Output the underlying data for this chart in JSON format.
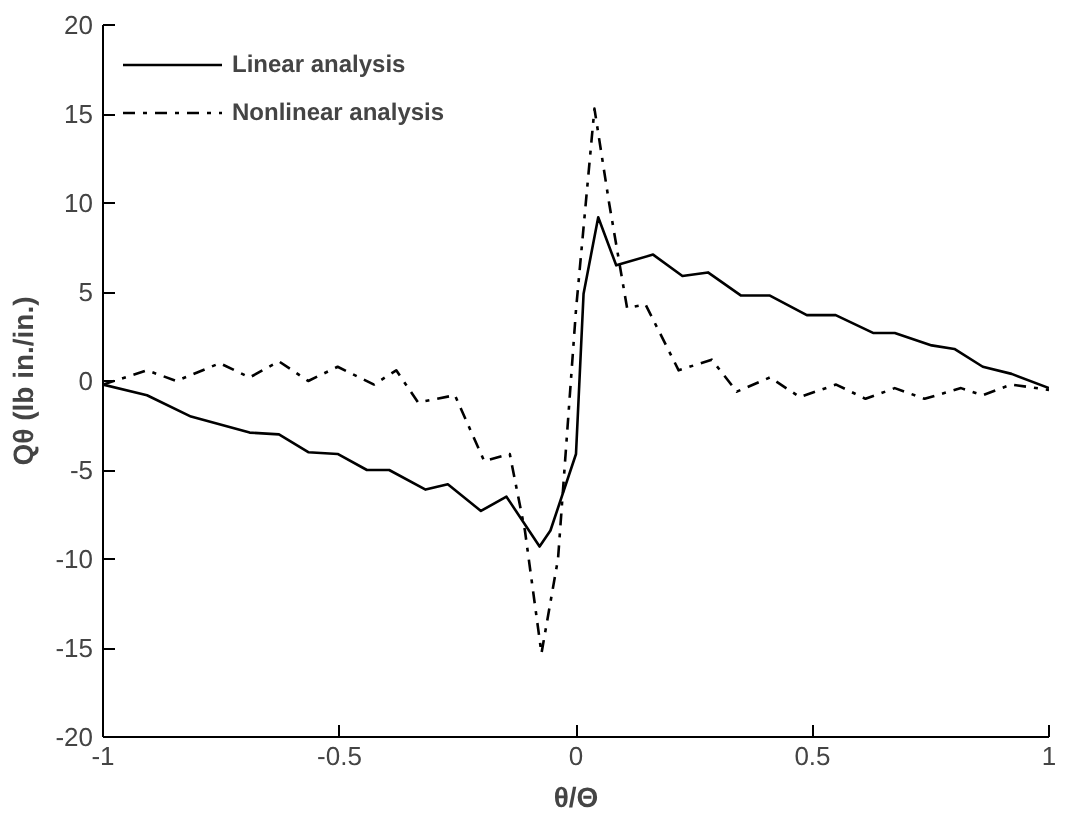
{
  "chart_data": {
    "type": "line",
    "xlabel": "θ/Θ",
    "ylabel": "Qθ (lb in./in.)",
    "xlim": [
      -1,
      1
    ],
    "ylim": [
      -20,
      20
    ],
    "xticks": [
      -1,
      -0.5,
      0,
      0.5,
      1
    ],
    "yticks": [
      -20,
      -15,
      -10,
      -5,
      0,
      5,
      10,
      15,
      20
    ],
    "grid": false,
    "legend": "top left",
    "marker": "none",
    "series": [
      {
        "name": "Linear analysis",
        "color": "#000000",
        "line_style": "solid",
        "x": [
          -1,
          -0.907,
          -0.814,
          -0.69,
          -0.628,
          -0.566,
          -0.504,
          -0.442,
          -0.395,
          -0.318,
          -0.271,
          -0.201,
          -0.147,
          -0.077,
          -0.054,
          0,
          0.016,
          0.047,
          0.085,
          0.163,
          0.225,
          0.279,
          0.349,
          0.41,
          0.488,
          0.549,
          0.628,
          0.674,
          0.752,
          0.8,
          0.86,
          0.921,
          1
        ],
        "values": [
          -0.2,
          -0.8,
          -2.0,
          -2.9,
          -3.0,
          -4.0,
          -4.1,
          -5.0,
          -5.0,
          -6.1,
          -5.8,
          -7.3,
          -6.5,
          -9.3,
          -8.4,
          -4.1,
          4.9,
          9.2,
          6.5,
          7.1,
          5.9,
          6.1,
          4.8,
          4.8,
          3.7,
          3.7,
          2.7,
          2.7,
          2.0,
          1.8,
          0.8,
          0.4,
          -0.4
        ]
      },
      {
        "name": "Nonlinear analysis",
        "color": "#000000",
        "line_style": "dashdot",
        "x": [
          -1,
          -0.907,
          -0.845,
          -0.753,
          -0.69,
          -0.628,
          -0.566,
          -0.504,
          -0.427,
          -0.38,
          -0.334,
          -0.256,
          -0.194,
          -0.14,
          -0.108,
          -0.073,
          -0.038,
          0,
          0.039,
          0.07,
          0.108,
          0.147,
          0.217,
          0.287,
          0.34,
          0.41,
          0.473,
          0.55,
          0.612,
          0.674,
          0.737,
          0.814,
          0.86,
          0.92,
          1
        ],
        "values": [
          -0.2,
          0.6,
          0,
          1.0,
          0.2,
          1.1,
          0,
          0.8,
          -0.2,
          0.6,
          -1.2,
          -0.8,
          -4.5,
          -4.1,
          -8.4,
          -15.3,
          -10,
          4.0,
          15.3,
          10,
          4.1,
          4.3,
          0.6,
          1.2,
          -0.6,
          0.2,
          -0.9,
          -0.2,
          -1.0,
          -0.4,
          -1.0,
          -0.4,
          -0.8,
          -0.2,
          -0.5
        ]
      }
    ]
  }
}
